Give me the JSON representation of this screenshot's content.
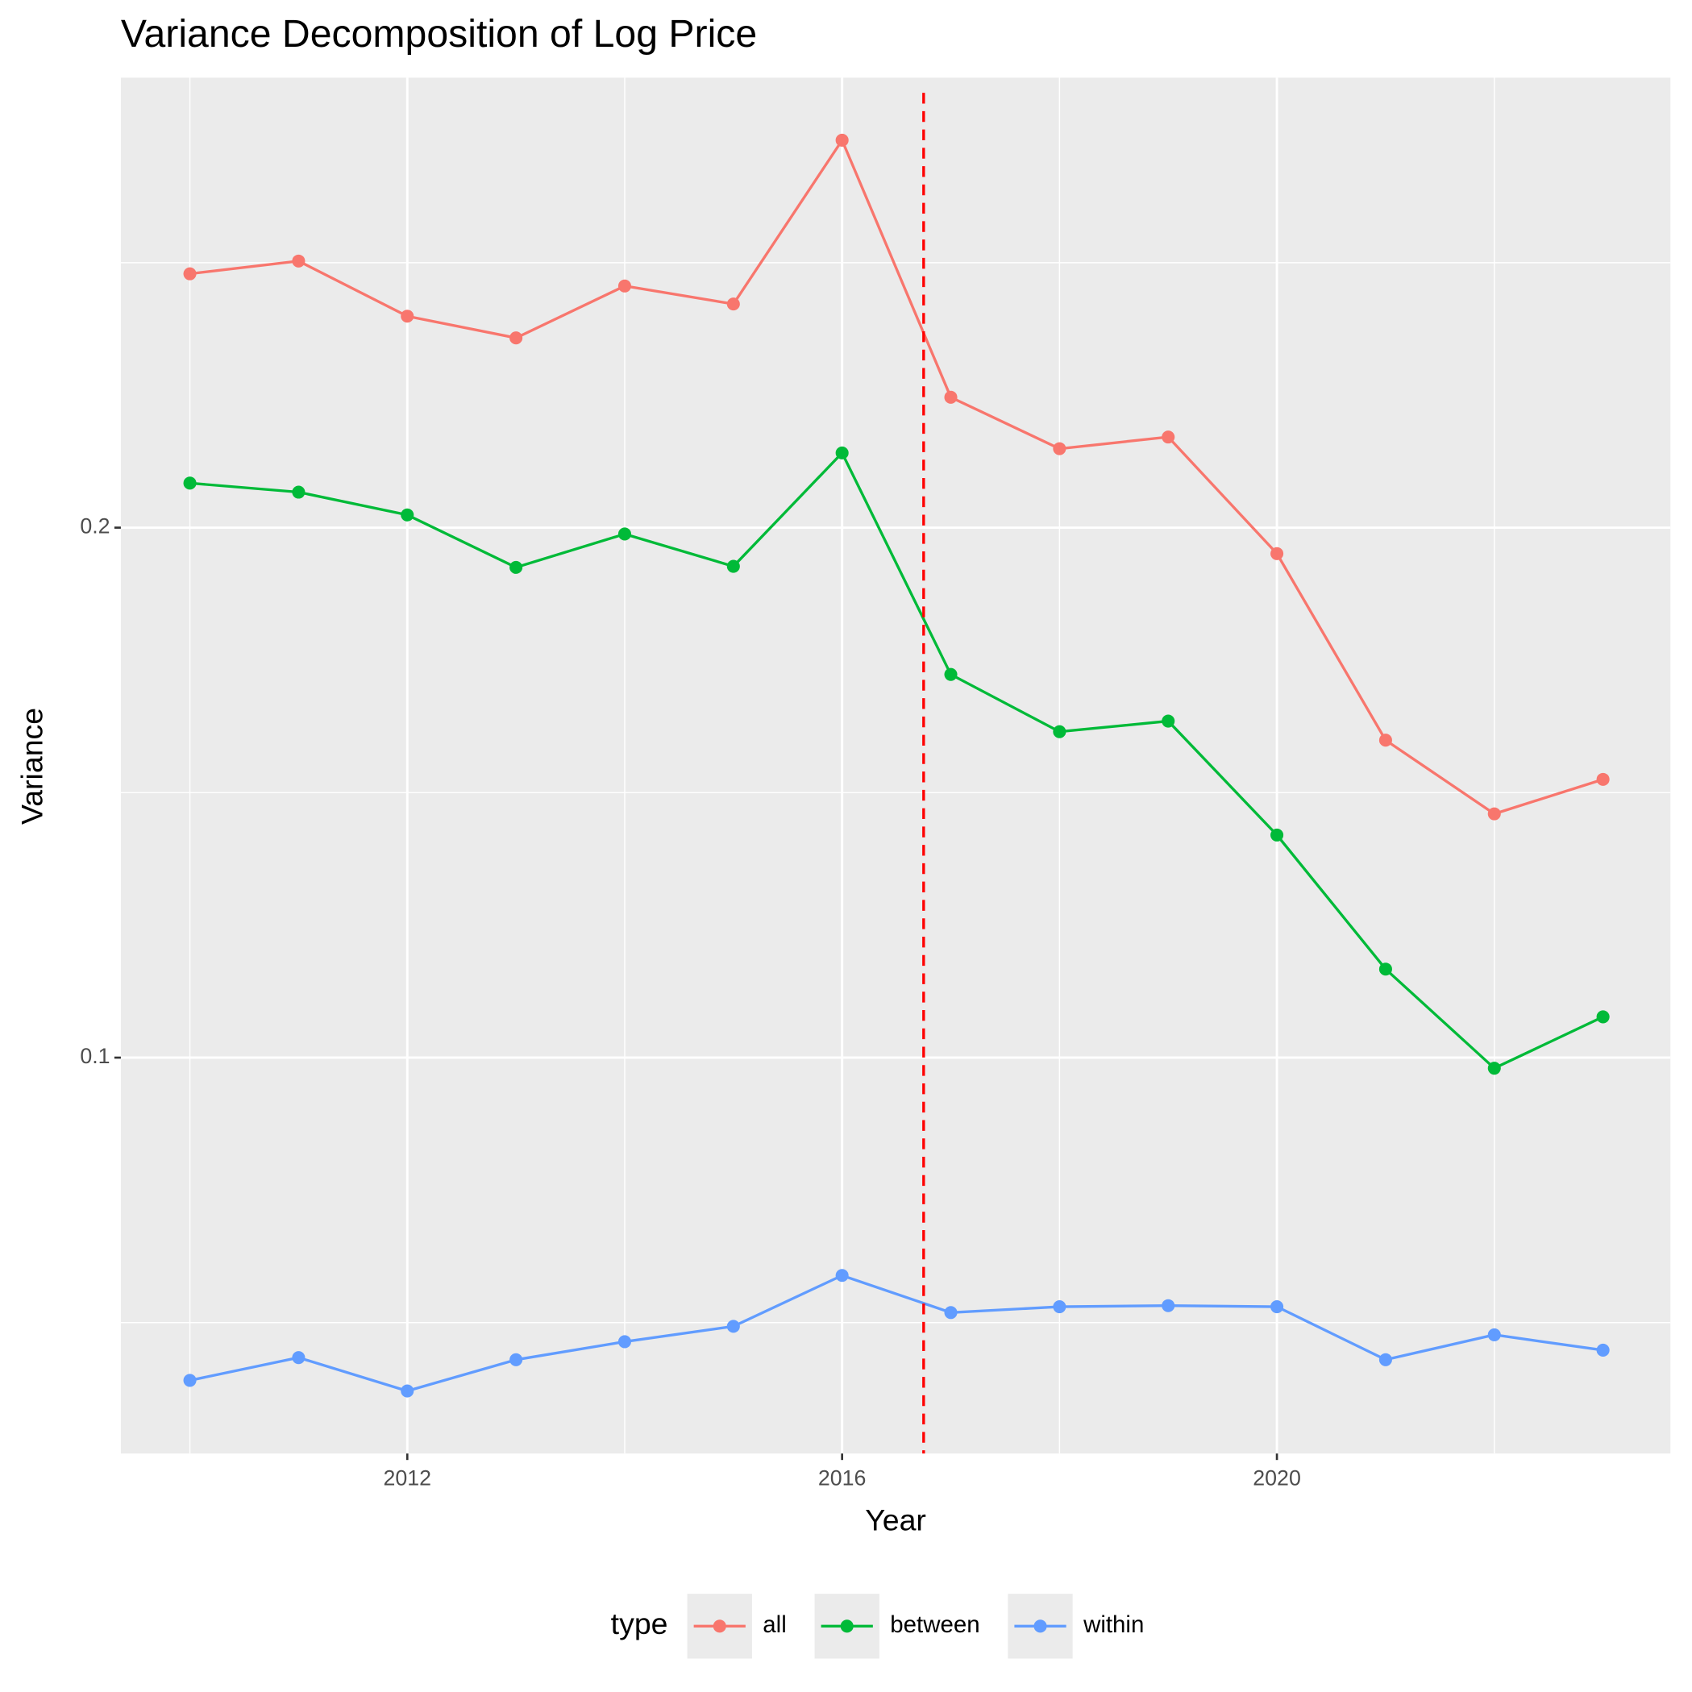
{
  "chart_data": {
    "type": "line",
    "title": "Variance Decomposition of Log Price",
    "x_label": "Year",
    "y_label": "Variance",
    "x": [
      2010,
      2011,
      2012,
      2013,
      2014,
      2015,
      2016,
      2017,
      2018,
      2019,
      2020,
      2021,
      2022,
      2023
    ],
    "series": [
      {
        "name": "all",
        "color": "#f8766d",
        "values": [
          0.2479,
          0.2503,
          0.2399,
          0.2358,
          0.2456,
          0.2422,
          0.2731,
          0.2246,
          0.2149,
          0.2171,
          0.1951,
          0.1599,
          0.146,
          0.1525
        ]
      },
      {
        "name": "between",
        "color": "#00ba38",
        "values": [
          0.2084,
          0.2067,
          0.2024,
          0.1925,
          0.1988,
          0.1927,
          0.2141,
          0.1723,
          0.1615,
          0.1635,
          0.142,
          0.1167,
          0.098,
          0.1077
        ]
      },
      {
        "name": "within",
        "color": "#619cff",
        "values": [
          0.0391,
          0.0434,
          0.0371,
          0.043,
          0.0464,
          0.0493,
          0.0589,
          0.0519,
          0.053,
          0.0532,
          0.053,
          0.043,
          0.0477,
          0.0448
        ]
      }
    ],
    "legend_title": "type",
    "legend_position": "bottom",
    "xlim": [
      2009.365,
      2023.62
    ],
    "xticks": [
      2012,
      2016,
      2020
    ],
    "x_minor_ticks": [
      2010,
      2014,
      2018,
      2022
    ],
    "ylim": [
      0.0253,
      0.2849
    ],
    "yticks": [
      0.1,
      0.2
    ],
    "y_minor_ticks": [
      0.05,
      0.15,
      0.25
    ],
    "grid": true,
    "vline": {
      "x": 2016.75,
      "color": "#ff0000"
    }
  }
}
